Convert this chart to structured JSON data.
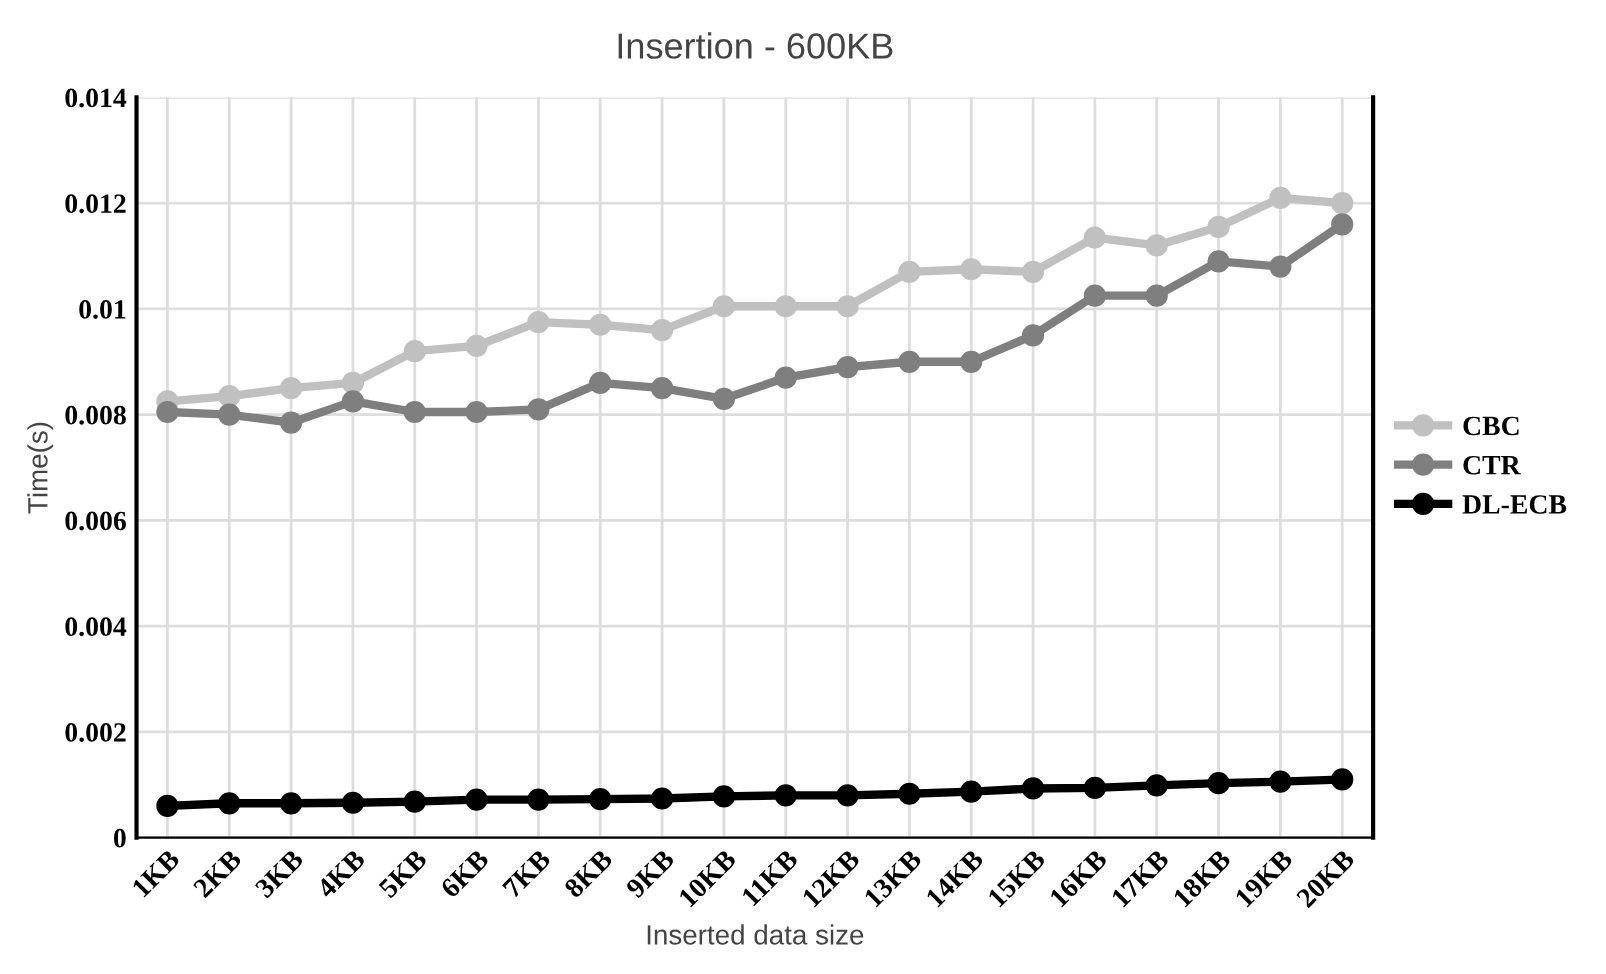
{
  "chart_data": {
    "type": "line",
    "title": "Insertion - 600KB",
    "xlabel": "Inserted data size",
    "ylabel": "Time(s)",
    "categories": [
      "1KB",
      "2KB",
      "3KB",
      "4KB",
      "5KB",
      "6KB",
      "7KB",
      "8KB",
      "9KB",
      "10KB",
      "11KB",
      "12KB",
      "13KB",
      "14KB",
      "15KB",
      "16KB",
      "17KB",
      "18KB",
      "19KB",
      "20KB"
    ],
    "series": [
      {
        "name": "CBC",
        "color": "#c0c0c0",
        "values": [
          0.00825,
          0.00835,
          0.0085,
          0.0086,
          0.0092,
          0.0093,
          0.00975,
          0.0097,
          0.0096,
          0.01005,
          0.01005,
          0.01005,
          0.0107,
          0.01075,
          0.0107,
          0.01135,
          0.0112,
          0.01155,
          0.0121,
          0.012
        ]
      },
      {
        "name": "CTR",
        "color": "#7f7f7f",
        "values": [
          0.00805,
          0.008,
          0.00785,
          0.00825,
          0.00805,
          0.00805,
          0.0081,
          0.0086,
          0.0085,
          0.0083,
          0.0087,
          0.0089,
          0.009,
          0.009,
          0.0095,
          0.01025,
          0.01025,
          0.0109,
          0.0108,
          0.0116
        ]
      },
      {
        "name": "DL-ECB",
        "color": "#000000",
        "values": [
          0.0006,
          0.00065,
          0.00065,
          0.00066,
          0.00068,
          0.00072,
          0.00072,
          0.00073,
          0.00074,
          0.00078,
          0.0008,
          0.0008,
          0.00083,
          0.00087,
          0.00093,
          0.00094,
          0.00099,
          0.00103,
          0.00106,
          0.0011
        ]
      }
    ],
    "ylim": [
      0,
      0.014
    ],
    "yticks": [
      0,
      0.002,
      0.004,
      0.006,
      0.008,
      0.01,
      0.012,
      0.014
    ],
    "grid": true,
    "legend": "right",
    "marker": "circle",
    "line_style": "solid"
  }
}
